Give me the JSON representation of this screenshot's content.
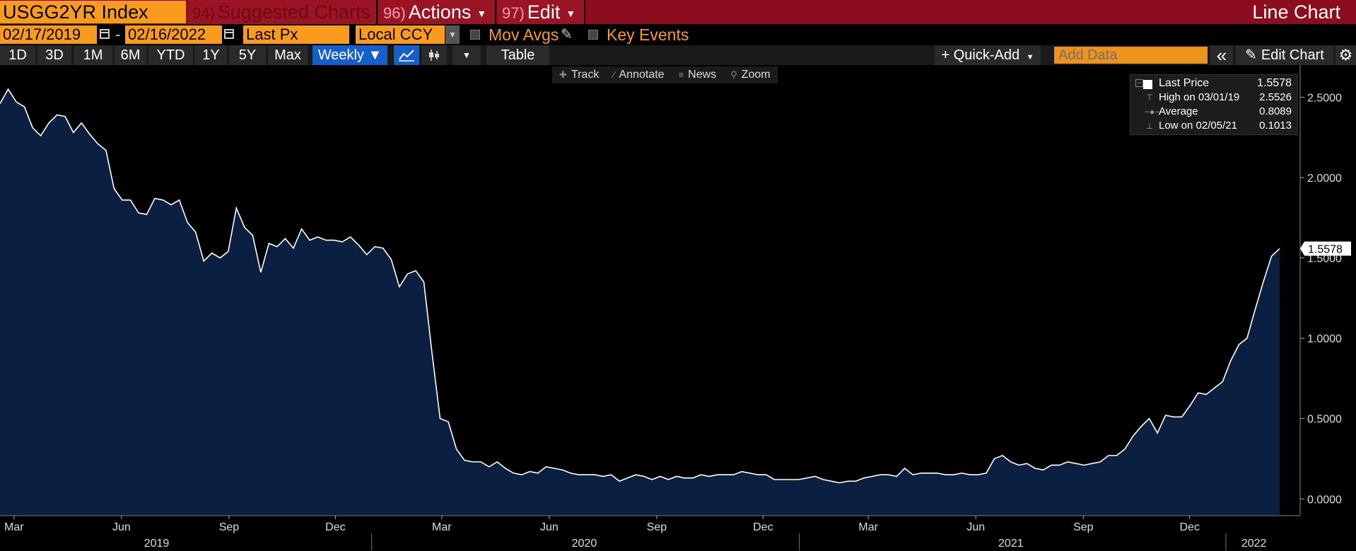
{
  "header": {
    "ticker": "USGG2YR Index",
    "menu": [
      {
        "num": "94)",
        "label": "Suggested Charts"
      },
      {
        "num": "96)",
        "label": "Actions"
      },
      {
        "num": "97)",
        "label": "Edit"
      }
    ],
    "chart_type_label": "Line Chart"
  },
  "controls": {
    "start_date": "02/17/2019",
    "dash": "-",
    "end_date": "02/16/2022",
    "field": "Last Px",
    "currency": "Local CCY",
    "mov_avgs": "Mov Avgs",
    "key_events": "Key Events"
  },
  "toolbar": {
    "periods": [
      "1D",
      "3D",
      "1M",
      "6M",
      "YTD",
      "1Y",
      "5Y",
      "Max"
    ],
    "frequency": "Weekly ▼",
    "table": "Table",
    "quick_add": "+ Quick-Add",
    "add_data_placeholder": "Add Data",
    "collapse": "«",
    "edit_chart": "Edit Chart"
  },
  "chart_toolbar": {
    "track": "Track",
    "annotate": "Annotate",
    "news": "News",
    "zoom": "Zoom"
  },
  "legend": {
    "last_price_label": "Last Price",
    "last_price": "1.5578",
    "high_label": "High on 03/01/19",
    "high": "2.5526",
    "average_label": "Average",
    "average": "0.8089",
    "low_label": "Low on 02/05/21",
    "low": "0.1013"
  },
  "colors": {
    "area_fill": "#0b2040",
    "line": "#ffffff",
    "accent_orange": "#fa9b1e",
    "header_red": "#8b0d1e"
  },
  "chart_data": {
    "type": "area",
    "title": "",
    "xlabel": "",
    "ylabel": "",
    "ylim": [
      -0.1,
      2.7
    ],
    "yticks": [
      "0.0000",
      "0.5000",
      "1.0000",
      "1.5000",
      "2.0000",
      "2.5000"
    ],
    "last_value_tag": "1.5578",
    "x_start": "2019-02-17",
    "x_end": "2022-02-16",
    "month_ticks": [
      "Mar",
      "Jun",
      "Sep",
      "Dec",
      "Mar",
      "Jun",
      "Sep",
      "Dec",
      "Mar",
      "Jun",
      "Sep",
      "Dec"
    ],
    "month_tick_dates": [
      "2019-03-01",
      "2019-06-01",
      "2019-09-01",
      "2019-12-01",
      "2020-03-01",
      "2020-06-01",
      "2020-09-01",
      "2020-12-01",
      "2021-03-01",
      "2021-06-01",
      "2021-09-01",
      "2021-12-01"
    ],
    "years": [
      {
        "label": "2019",
        "date": "2019-07-01"
      },
      {
        "label": "2020",
        "date": "2020-07-01"
      },
      {
        "label": "2021",
        "date": "2021-07-01"
      },
      {
        "label": "2022",
        "date": "2022-01-25"
      }
    ],
    "year_dividers": [
      "2020-01-01",
      "2021-01-01",
      "2022-01-01"
    ],
    "series": [
      {
        "values": [
          2.46,
          2.55,
          2.47,
          2.44,
          2.31,
          2.26,
          2.34,
          2.39,
          2.38,
          2.28,
          2.34,
          2.27,
          2.21,
          2.17,
          1.93,
          1.86,
          1.86,
          1.78,
          1.77,
          1.87,
          1.86,
          1.83,
          1.86,
          1.72,
          1.66,
          1.48,
          1.53,
          1.5,
          1.54,
          1.81,
          1.69,
          1.64,
          1.41,
          1.59,
          1.57,
          1.62,
          1.56,
          1.68,
          1.61,
          1.63,
          1.61,
          1.61,
          1.6,
          1.63,
          1.58,
          1.52,
          1.57,
          1.56,
          1.49,
          1.32,
          1.4,
          1.42,
          1.35,
          0.91,
          0.5,
          0.48,
          0.31,
          0.24,
          0.23,
          0.23,
          0.2,
          0.23,
          0.19,
          0.16,
          0.15,
          0.17,
          0.16,
          0.2,
          0.19,
          0.18,
          0.16,
          0.15,
          0.15,
          0.15,
          0.14,
          0.15,
          0.11,
          0.13,
          0.15,
          0.14,
          0.12,
          0.14,
          0.12,
          0.14,
          0.13,
          0.13,
          0.15,
          0.14,
          0.15,
          0.15,
          0.15,
          0.17,
          0.16,
          0.15,
          0.15,
          0.12,
          0.12,
          0.12,
          0.12,
          0.13,
          0.14,
          0.12,
          0.11,
          0.1,
          0.11,
          0.11,
          0.13,
          0.14,
          0.15,
          0.15,
          0.14,
          0.19,
          0.15,
          0.16,
          0.16,
          0.16,
          0.15,
          0.15,
          0.16,
          0.15,
          0.15,
          0.16,
          0.25,
          0.27,
          0.23,
          0.21,
          0.22,
          0.19,
          0.18,
          0.21,
          0.21,
          0.23,
          0.22,
          0.21,
          0.22,
          0.23,
          0.27,
          0.27,
          0.31,
          0.39,
          0.45,
          0.5,
          0.41,
          0.52,
          0.51,
          0.51,
          0.58,
          0.66,
          0.65,
          0.69,
          0.73,
          0.86,
          0.96,
          1.0,
          1.18,
          1.35,
          1.51,
          1.5578
        ]
      }
    ]
  }
}
